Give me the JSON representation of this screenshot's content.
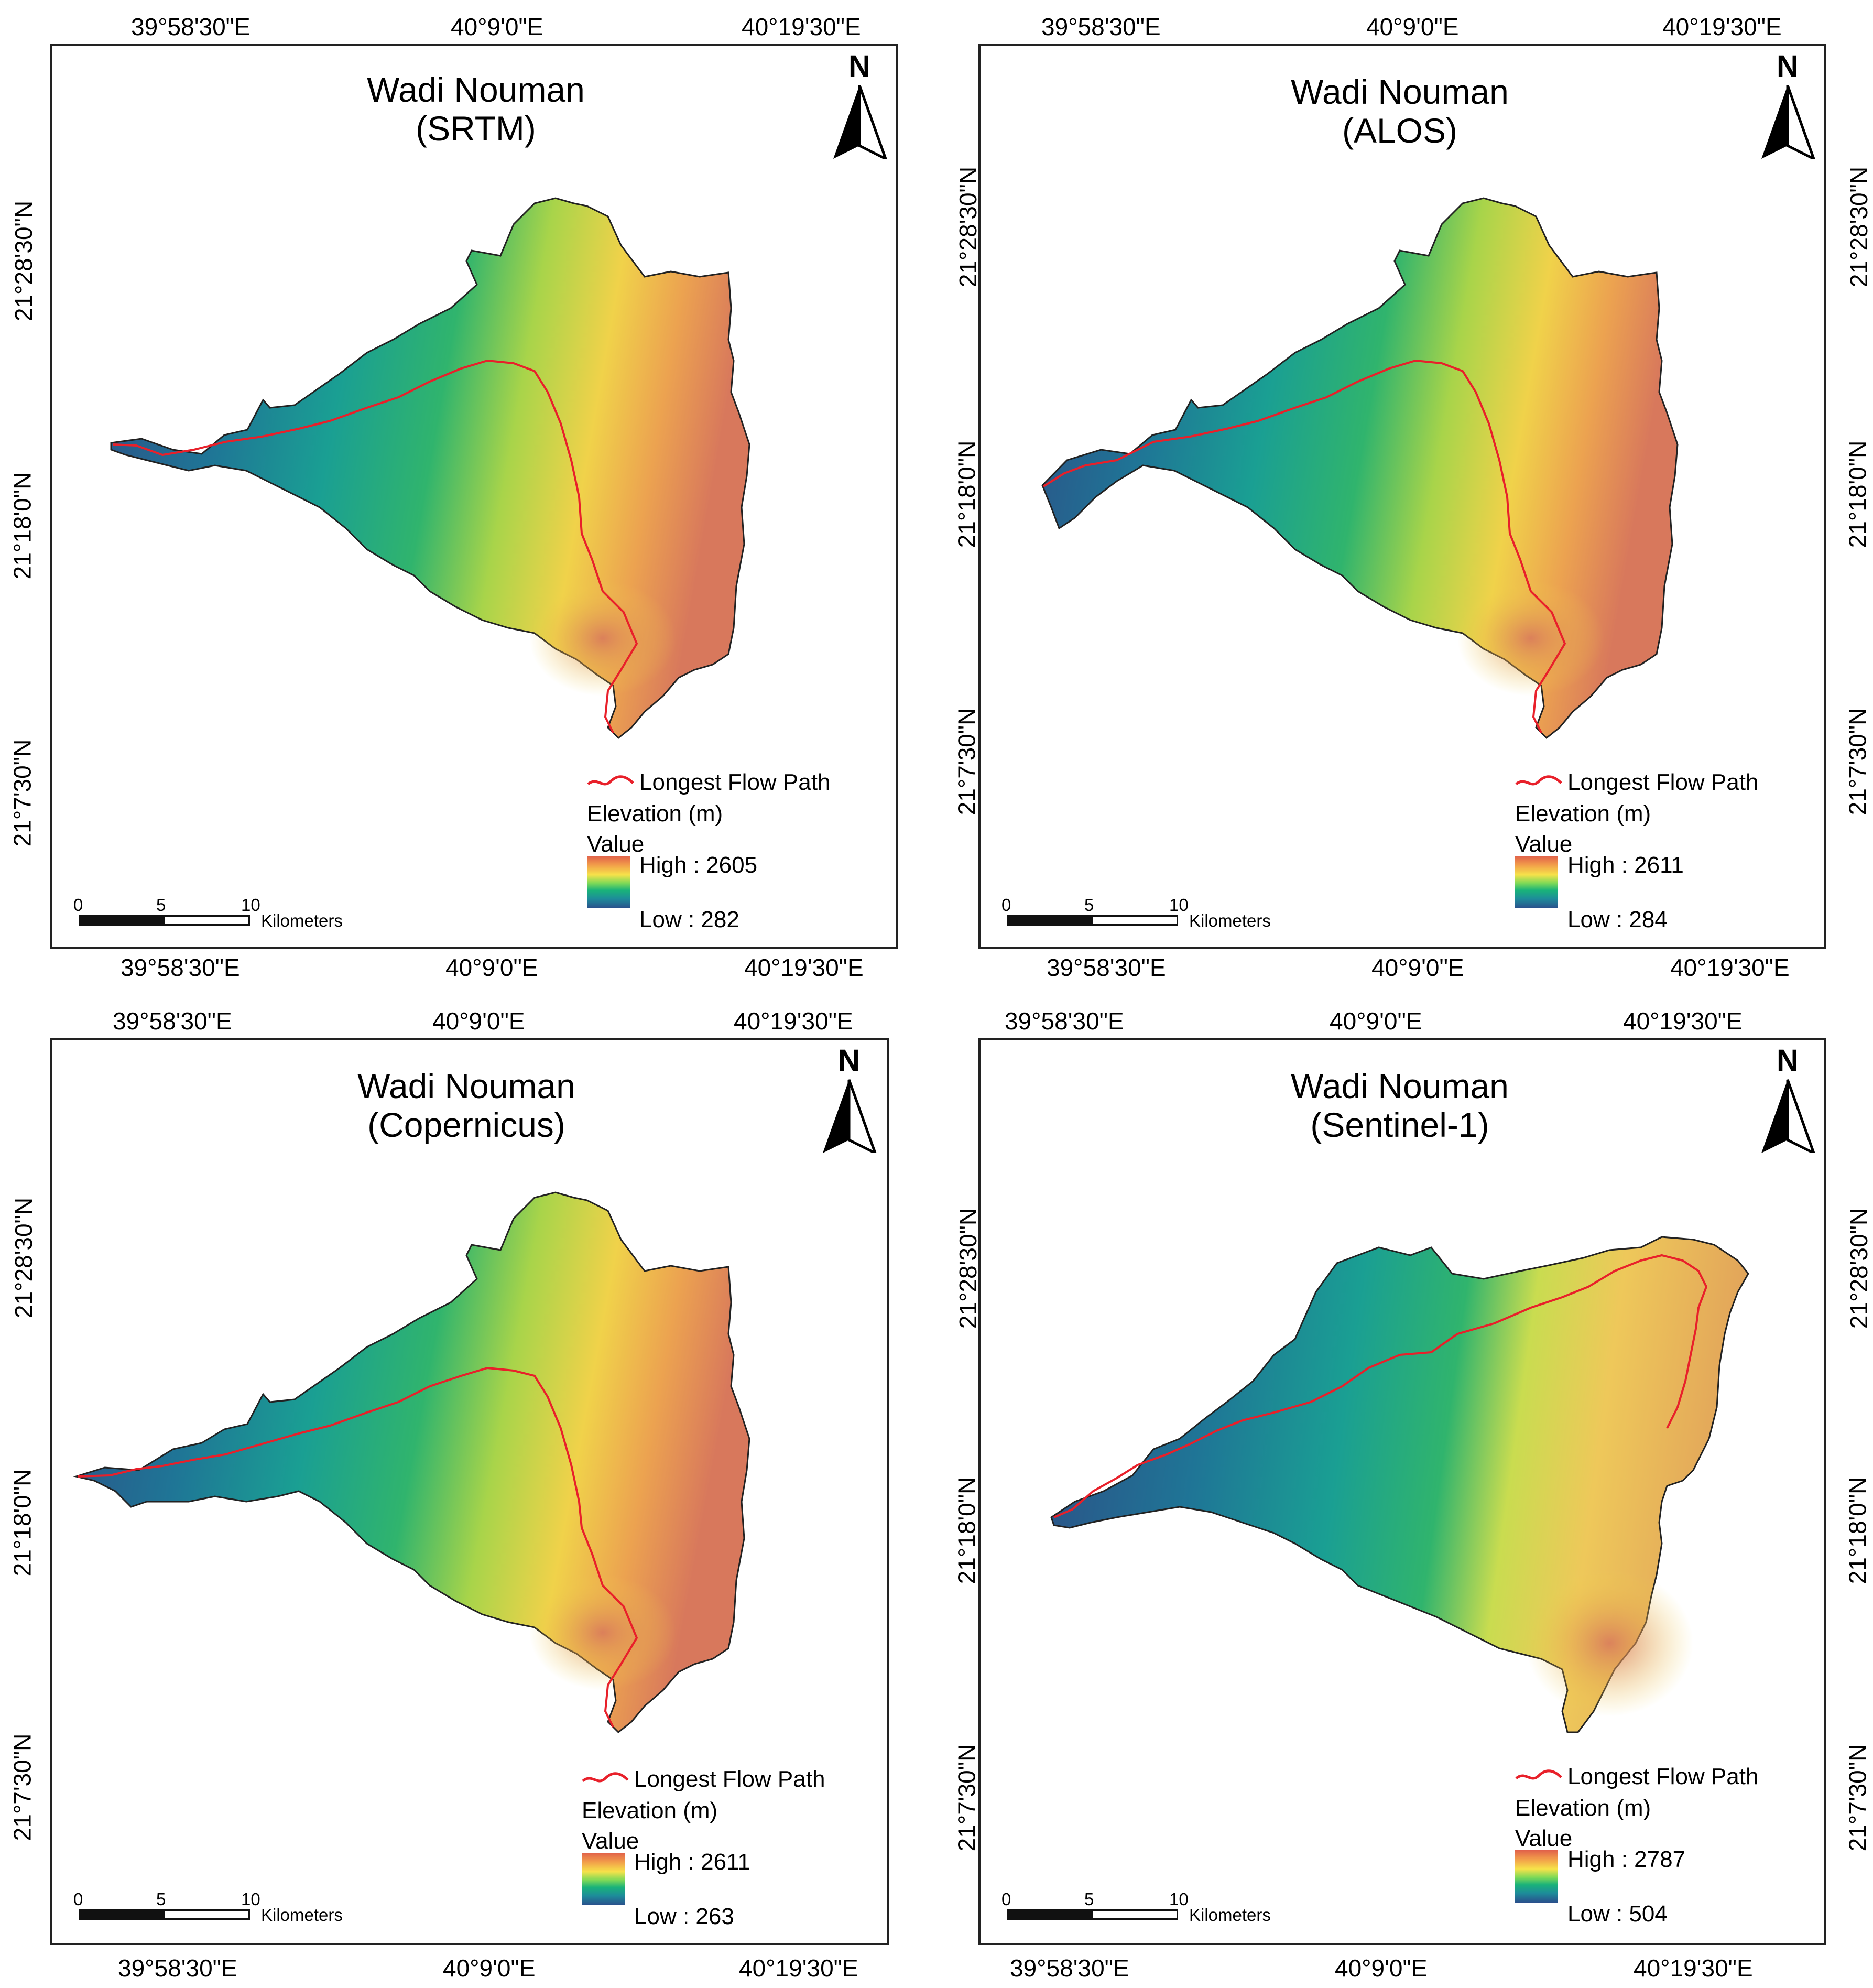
{
  "axes": {
    "lon": [
      "39°58'30\"E",
      "40°9'0\"E",
      "40°19'30\"E"
    ],
    "lat": [
      "21°28'30\"N",
      "21°18'0\"N",
      "21°7'30\"N"
    ]
  },
  "legend": {
    "flow_label": "Longest Flow Path",
    "elevation_label": "Elevation (m)",
    "value_label": "Value"
  },
  "scale": {
    "n0": "0",
    "n5": "5",
    "n10": "10",
    "unit": "Kilometers"
  },
  "north": "N",
  "colors": {
    "flow": "#e8202a",
    "outline": "#222222",
    "high": "#e0604a",
    "low": "#2a4f8c"
  },
  "panels": [
    {
      "title": "Wadi Nouman",
      "source": "(SRTM)",
      "high": "High : 2605",
      "low": "Low : 282",
      "high_m": 2605,
      "low_m": 282
    },
    {
      "title": "Wadi Nouman",
      "source": "(ALOS)",
      "high": "High : 2611",
      "low": "Low : 284",
      "high_m": 2611,
      "low_m": 284
    },
    {
      "title": "Wadi Nouman",
      "source": "(Copernicus)",
      "high": "High : 2611",
      "low": "Low : 263",
      "high_m": 2611,
      "low_m": 263
    },
    {
      "title": "Wadi Nouman",
      "source": "(Sentinel-1)",
      "high": "High : 2787",
      "low": "Low : 504",
      "high_m": 2787,
      "low_m": 504
    }
  ]
}
